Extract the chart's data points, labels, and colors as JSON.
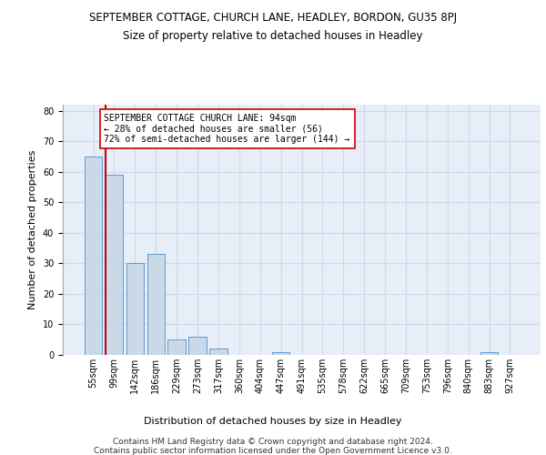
{
  "title": "SEPTEMBER COTTAGE, CHURCH LANE, HEADLEY, BORDON, GU35 8PJ",
  "subtitle": "Size of property relative to detached houses in Headley",
  "xlabel": "Distribution of detached houses by size in Headley",
  "ylabel": "Number of detached properties",
  "categories": [
    "55sqm",
    "99sqm",
    "142sqm",
    "186sqm",
    "229sqm",
    "273sqm",
    "317sqm",
    "360sqm",
    "404sqm",
    "447sqm",
    "491sqm",
    "535sqm",
    "578sqm",
    "622sqm",
    "665sqm",
    "709sqm",
    "753sqm",
    "796sqm",
    "840sqm",
    "883sqm",
    "927sqm"
  ],
  "values": [
    65,
    59,
    30,
    33,
    5,
    6,
    2,
    0,
    0,
    1,
    0,
    0,
    0,
    0,
    0,
    0,
    0,
    0,
    0,
    1,
    0
  ],
  "bar_color": "#c9d9e8",
  "bar_edge_color": "#5b9bd5",
  "vline_color": "#cc0000",
  "vline_x": 0.575,
  "annotation_text": "SEPTEMBER COTTAGE CHURCH LANE: 94sqm\n← 28% of detached houses are smaller (56)\n72% of semi-detached houses are larger (144) →",
  "annotation_box_color": "#ffffff",
  "annotation_box_edge_color": "#cc0000",
  "ylim": [
    0,
    82
  ],
  "yticks": [
    0,
    10,
    20,
    30,
    40,
    50,
    60,
    70,
    80
  ],
  "grid_color": "#d0d8e8",
  "background_color": "#e8eef8",
  "footer_line1": "Contains HM Land Registry data © Crown copyright and database right 2024.",
  "footer_line2": "Contains public sector information licensed under the Open Government Licence v3.0.",
  "title_fontsize": 8.5,
  "subtitle_fontsize": 8.5,
  "axis_label_fontsize": 8,
  "tick_fontsize": 7,
  "annotation_fontsize": 7,
  "footer_fontsize": 6.5
}
